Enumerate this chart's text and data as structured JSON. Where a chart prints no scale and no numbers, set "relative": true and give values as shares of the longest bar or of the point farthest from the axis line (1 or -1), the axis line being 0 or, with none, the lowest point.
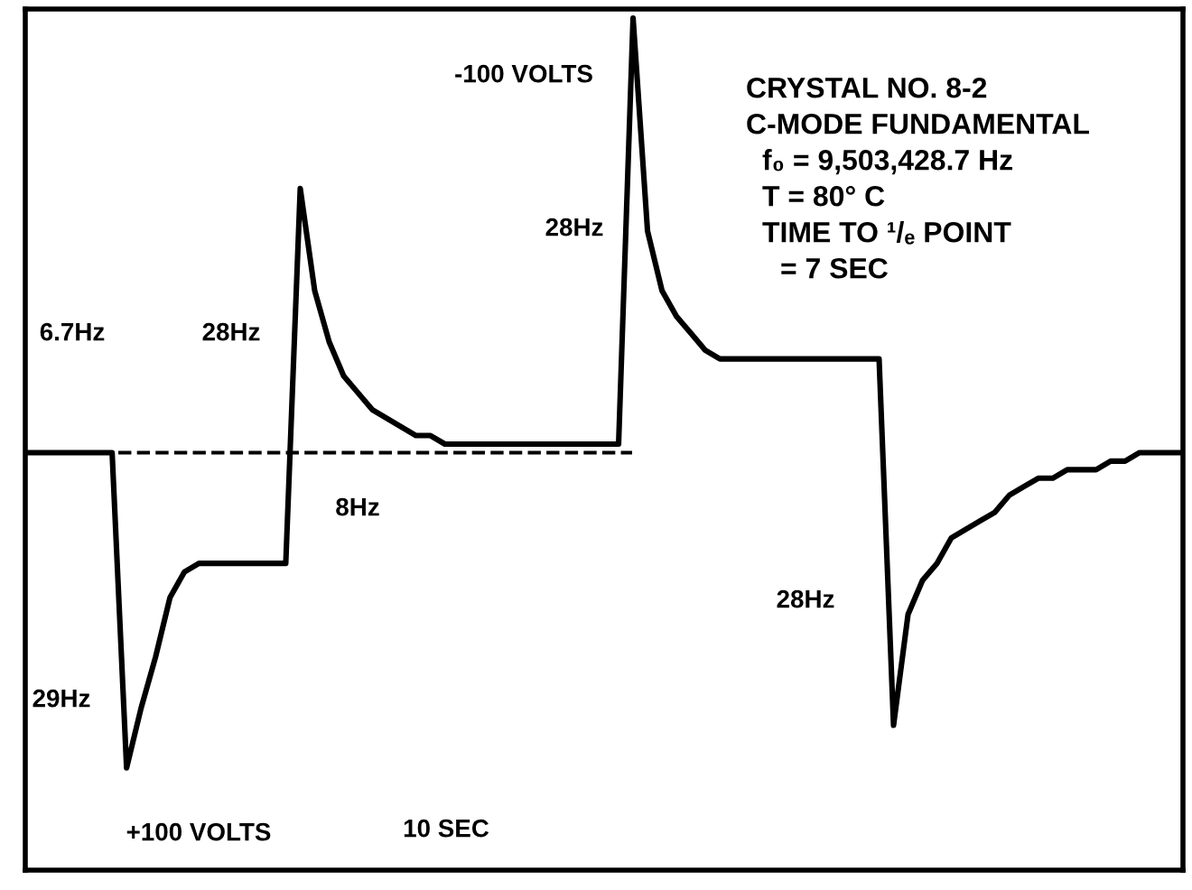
{
  "chart_data": {
    "type": "line",
    "relative": true,
    "tick_labels": false,
    "legend": false,
    "marker": "none",
    "line_style": "solid",
    "categories": [
      null,
      null,
      null,
      null,
      null,
      null,
      null,
      null,
      null,
      null,
      null,
      null,
      null,
      null,
      null,
      null,
      null,
      null,
      null,
      null,
      null,
      null,
      null,
      null,
      null,
      null,
      null,
      null,
      null,
      null,
      null,
      null,
      null,
      null,
      null,
      null,
      null,
      null,
      null,
      null,
      null,
      null,
      null,
      null,
      null,
      null,
      null,
      null,
      null,
      null,
      null,
      null,
      null,
      null,
      null,
      null,
      null,
      null,
      null,
      null,
      null,
      null,
      null,
      null,
      null,
      null,
      null,
      null,
      null,
      null,
      null,
      null,
      null,
      null,
      null,
      null,
      null,
      null,
      null,
      null,
      null
    ],
    "series": [
      {
        "color": "#000000",
        "values": [
          0.49,
          0.49,
          0.49,
          0.49,
          0.49,
          0.49,
          0.49,
          0.12,
          0.19,
          0.25,
          0.32,
          0.35,
          0.36,
          0.36,
          0.36,
          0.36,
          0.36,
          0.36,
          0.36,
          0.8,
          0.68,
          0.62,
          0.58,
          0.56,
          0.54,
          0.53,
          0.52,
          0.51,
          0.51,
          0.5,
          0.5,
          0.5,
          0.5,
          0.5,
          0.5,
          0.5,
          0.5,
          0.5,
          0.5,
          0.5,
          0.5,
          0.5,
          1.0,
          0.75,
          0.68,
          0.65,
          0.63,
          0.61,
          0.6,
          0.6,
          0.6,
          0.6,
          0.6,
          0.6,
          0.6,
          0.6,
          0.6,
          0.6,
          0.6,
          0.6,
          0.17,
          0.3,
          0.34,
          0.36,
          0.39,
          0.4,
          0.41,
          0.42,
          0.44,
          0.45,
          0.46,
          0.46,
          0.47,
          0.47,
          0.47,
          0.48,
          0.48,
          0.49,
          0.49,
          0.49,
          0.49
        ]
      }
    ],
    "ref_lines": [
      {
        "axis": "y",
        "value": 0.49,
        "label": null,
        "color": "#000000",
        "line_style": "dashed"
      }
    ],
    "annotations": [
      "6.7Hz",
      "-100 VOLTS",
      "28Hz",
      "28Hz",
      "8Hz",
      "29Hz",
      "+100 VOLTS",
      "10 SEC",
      "28Hz",
      "CRYSTAL NO. 8-2",
      "C-MODE FUNDAMENTAL",
      "f₀ = 9,503,428.7 Hz",
      "T = 80° C",
      "TIME TO ¹/ₑ POINT",
      "= 7 SEC"
    ]
  }
}
